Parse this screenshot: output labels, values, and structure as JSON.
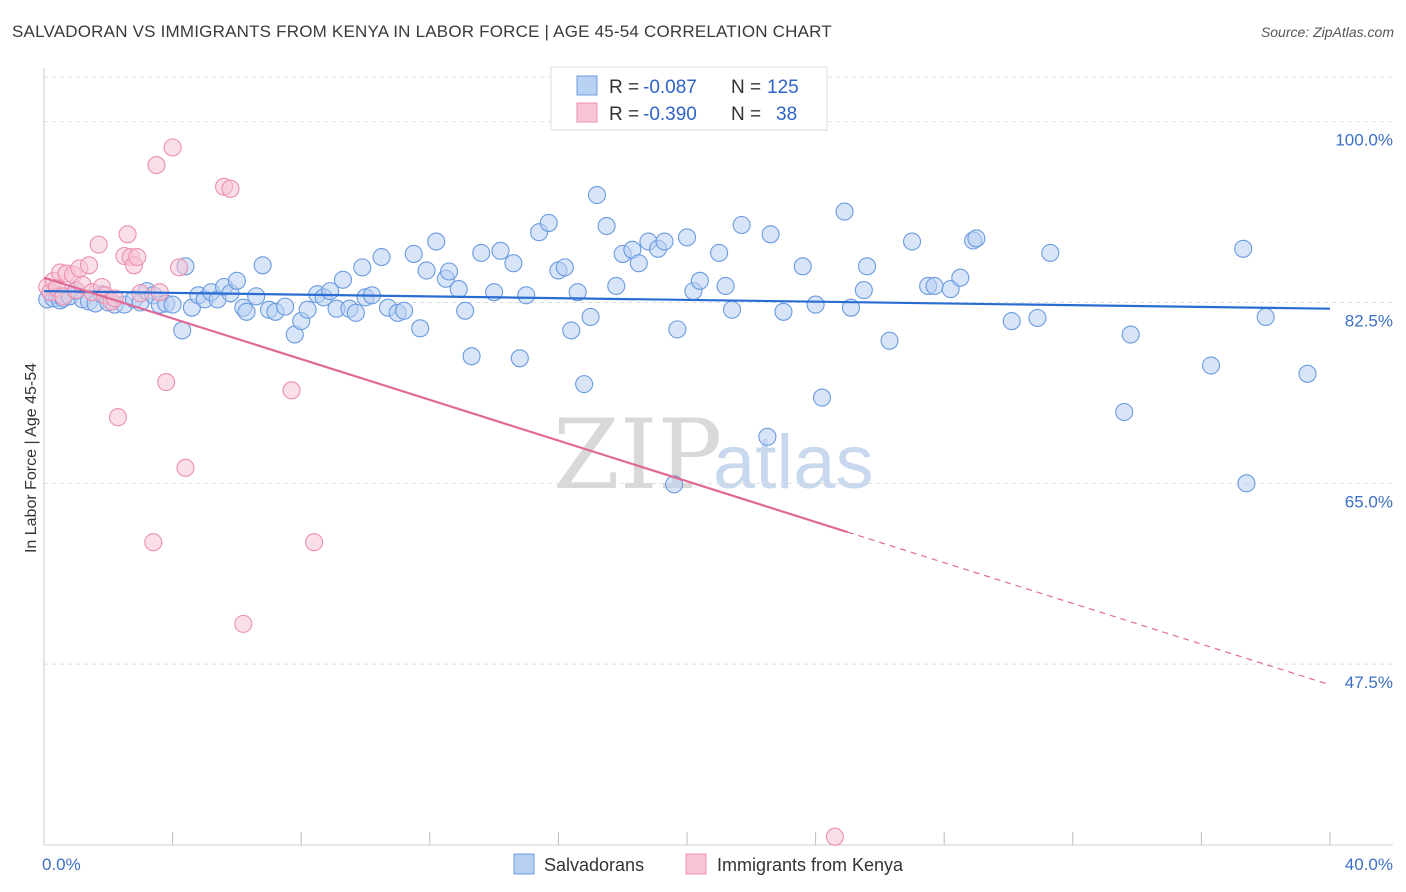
{
  "title": "SALVADORAN VS IMMIGRANTS FROM KENYA IN LABOR FORCE | AGE 45-54 CORRELATION CHART",
  "source": "Source: ZipAtlas.com",
  "watermark": {
    "zip": "ZIP",
    "atlas": "atlas"
  },
  "colors": {
    "blue": "#6a9be0",
    "blue_fill": "#b8d0f2",
    "blue_line": "#2a6dd2",
    "pink": "#ec8fb0",
    "pink_fill": "#f7c4d6",
    "pink_line": "#e06a96",
    "tick_text": "#3d6fc4"
  },
  "legend": {
    "rows": [
      {
        "r_label": "R =",
        "r_value": "-0.087",
        "n_label": "N =",
        "n_value": "125",
        "series": "blue"
      },
      {
        "r_label": "R =",
        "r_value": "-0.390",
        "n_label": "N =",
        "n_value": "38",
        "series": "pink"
      }
    ]
  },
  "chart_data": {
    "type": "scatter",
    "title": "SALVADORAN VS IMMIGRANTS FROM KENYA IN LABOR FORCE | AGE 45-54 CORRELATION CHART",
    "xlabel": "",
    "ylabel": "In Labor Force | Age 45-54",
    "xlim": [
      0,
      40
    ],
    "ylim": [
      30,
      105
    ],
    "x_tick_labels": [
      {
        "value": 0,
        "label": "0.0%"
      },
      {
        "value": 40,
        "label": "40.0%"
      }
    ],
    "x_minor_ticks": [
      4,
      8,
      12,
      16,
      20,
      24,
      28,
      32,
      36,
      40
    ],
    "y_ticks": [
      {
        "value": 100,
        "label": "100.0%"
      },
      {
        "value": 82.5,
        "label": "82.5%"
      },
      {
        "value": 65,
        "label": "65.0%"
      },
      {
        "value": 47.5,
        "label": "47.5%"
      }
    ],
    "legend_position": "top-center",
    "series": [
      {
        "name": "Salvadorans",
        "color": "blue",
        "trend": {
          "x0": 0,
          "y0": 83.6,
          "x1": 40,
          "y1": 81.9,
          "dash_from": null
        },
        "points": [
          [
            0.1,
            82.8
          ],
          [
            0.2,
            83.5
          ],
          [
            0.3,
            82.9
          ],
          [
            0.4,
            83.2
          ],
          [
            0.5,
            82.7
          ],
          [
            0.6,
            82.9
          ],
          [
            0.8,
            83.1
          ],
          [
            1.0,
            83.6
          ],
          [
            1.2,
            82.8
          ],
          [
            1.4,
            82.6
          ],
          [
            1.6,
            82.4
          ],
          [
            1.8,
            83.3
          ],
          [
            2.0,
            82.5
          ],
          [
            2.2,
            82.3
          ],
          [
            2.5,
            82.3
          ],
          [
            2.8,
            82.8
          ],
          [
            3.0,
            82.5
          ],
          [
            3.2,
            83.6
          ],
          [
            3.4,
            83.2
          ],
          [
            3.6,
            82.3
          ],
          [
            3.8,
            82.4
          ],
          [
            4.0,
            82.3
          ],
          [
            4.3,
            79.8
          ],
          [
            4.4,
            86.0
          ],
          [
            4.6,
            82.0
          ],
          [
            4.8,
            83.2
          ],
          [
            5.0,
            82.8
          ],
          [
            5.2,
            83.5
          ],
          [
            5.4,
            82.8
          ],
          [
            5.6,
            84.0
          ],
          [
            5.8,
            83.4
          ],
          [
            6.0,
            84.6
          ],
          [
            6.2,
            82.0
          ],
          [
            6.3,
            81.6
          ],
          [
            6.6,
            83.1
          ],
          [
            6.8,
            86.1
          ],
          [
            7.0,
            81.8
          ],
          [
            7.2,
            81.6
          ],
          [
            7.5,
            82.1
          ],
          [
            7.8,
            79.4
          ],
          [
            8.0,
            80.7
          ],
          [
            8.2,
            81.8
          ],
          [
            8.5,
            83.3
          ],
          [
            8.7,
            83.0
          ],
          [
            8.9,
            83.6
          ],
          [
            9.1,
            81.9
          ],
          [
            9.3,
            84.7
          ],
          [
            9.5,
            81.9
          ],
          [
            9.7,
            81.5
          ],
          [
            9.9,
            85.9
          ],
          [
            10.0,
            83.0
          ],
          [
            10.2,
            83.2
          ],
          [
            10.5,
            86.9
          ],
          [
            10.7,
            82.0
          ],
          [
            11.0,
            81.5
          ],
          [
            11.2,
            81.7
          ],
          [
            11.5,
            87.2
          ],
          [
            11.7,
            80.0
          ],
          [
            11.9,
            85.6
          ],
          [
            12.2,
            88.4
          ],
          [
            12.5,
            84.8
          ],
          [
            12.6,
            85.5
          ],
          [
            12.9,
            83.8
          ],
          [
            13.1,
            81.7
          ],
          [
            13.3,
            77.3
          ],
          [
            13.6,
            87.3
          ],
          [
            14.0,
            83.5
          ],
          [
            14.2,
            87.5
          ],
          [
            14.6,
            86.3
          ],
          [
            14.8,
            77.1
          ],
          [
            15.0,
            83.2
          ],
          [
            15.4,
            89.3
          ],
          [
            15.7,
            90.2
          ],
          [
            16.0,
            85.6
          ],
          [
            16.2,
            85.9
          ],
          [
            16.4,
            79.8
          ],
          [
            16.6,
            83.5
          ],
          [
            16.8,
            74.6
          ],
          [
            17.0,
            81.1
          ],
          [
            17.2,
            92.9
          ],
          [
            17.5,
            89.9
          ],
          [
            17.8,
            84.1
          ],
          [
            18.0,
            87.2
          ],
          [
            18.3,
            87.6
          ],
          [
            18.5,
            86.3
          ],
          [
            18.8,
            88.4
          ],
          [
            19.1,
            87.7
          ],
          [
            19.3,
            88.4
          ],
          [
            19.6,
            64.9
          ],
          [
            19.7,
            79.9
          ],
          [
            20.0,
            88.8
          ],
          [
            20.2,
            83.6
          ],
          [
            20.4,
            84.6
          ],
          [
            21.0,
            87.3
          ],
          [
            21.2,
            84.1
          ],
          [
            21.4,
            81.8
          ],
          [
            21.7,
            90.0
          ],
          [
            22.5,
            69.5
          ],
          [
            22.6,
            89.1
          ],
          [
            23.0,
            81.6
          ],
          [
            23.6,
            86.0
          ],
          [
            24.0,
            82.3
          ],
          [
            24.2,
            73.3
          ],
          [
            24.9,
            91.3
          ],
          [
            25.1,
            82.0
          ],
          [
            25.5,
            83.7
          ],
          [
            25.6,
            86.0
          ],
          [
            26.3,
            78.8
          ],
          [
            27.0,
            88.4
          ],
          [
            27.5,
            84.1
          ],
          [
            27.7,
            84.1
          ],
          [
            28.2,
            83.8
          ],
          [
            28.5,
            84.9
          ],
          [
            28.9,
            88.5
          ],
          [
            29.0,
            88.7
          ],
          [
            30.1,
            80.7
          ],
          [
            30.9,
            81.0
          ],
          [
            31.3,
            87.3
          ],
          [
            33.6,
            71.9
          ],
          [
            33.8,
            79.4
          ],
          [
            36.3,
            76.4
          ],
          [
            37.3,
            87.7
          ],
          [
            37.4,
            65.0
          ],
          [
            38.0,
            81.1
          ],
          [
            39.3,
            75.6
          ]
        ]
      },
      {
        "name": "Immigrants from Kenya",
        "color": "pink",
        "trend": {
          "x0": 0,
          "y0": 84.9,
          "x1": 40,
          "y1": 45.5,
          "dash_from": 25
        },
        "points": [
          [
            0.1,
            84.0
          ],
          [
            0.2,
            83.5
          ],
          [
            0.3,
            84.6
          ],
          [
            0.4,
            83.9
          ],
          [
            0.5,
            85.4
          ],
          [
            0.6,
            83.1
          ],
          [
            0.7,
            85.3
          ],
          [
            0.9,
            85.2
          ],
          [
            1.0,
            83.7
          ],
          [
            1.1,
            85.8
          ],
          [
            1.2,
            84.2
          ],
          [
            1.4,
            86.1
          ],
          [
            1.5,
            83.5
          ],
          [
            1.7,
            88.1
          ],
          [
            1.8,
            84.0
          ],
          [
            1.9,
            83.2
          ],
          [
            2.1,
            82.6
          ],
          [
            2.2,
            82.9
          ],
          [
            2.3,
            71.4
          ],
          [
            2.5,
            87.0
          ],
          [
            2.6,
            89.1
          ],
          [
            2.7,
            86.9
          ],
          [
            2.8,
            86.1
          ],
          [
            2.9,
            86.9
          ],
          [
            3.0,
            83.4
          ],
          [
            3.4,
            59.3
          ],
          [
            3.5,
            95.8
          ],
          [
            3.6,
            83.5
          ],
          [
            3.8,
            74.8
          ],
          [
            4.0,
            97.5
          ],
          [
            4.2,
            85.9
          ],
          [
            4.4,
            66.5
          ],
          [
            5.6,
            93.7
          ],
          [
            5.8,
            93.5
          ],
          [
            6.2,
            51.4
          ],
          [
            7.7,
            74.0
          ],
          [
            8.4,
            59.3
          ],
          [
            24.6,
            30.8
          ]
        ]
      }
    ]
  },
  "bottom_legend": [
    {
      "label": "Salvadorans",
      "series": "blue"
    },
    {
      "label": "Immigrants from Kenya",
      "series": "pink"
    }
  ]
}
